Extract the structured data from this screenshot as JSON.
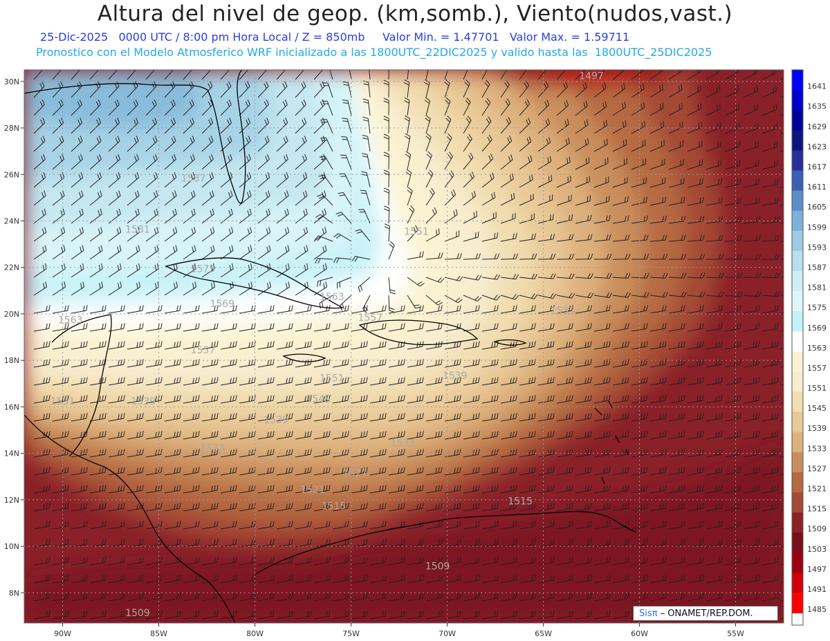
{
  "header": {
    "title": "Altura del nivel de geop. (km,somb.), Viento(nudos,vast.)",
    "subtitle_line1": "25-Dic-2025   0000 UTC / 8:00 pm Hora Local / Z = 850mb     Valor Min. = 1.47701   Valor Max. = 1.59711",
    "subtitle_line2": "Pronostico con el Modelo Atmosferico WRF inicializado a las 1800UTC_22DIC2025 y valido hasta las  1800UTC_25DIC2025"
  },
  "map": {
    "lon_labels": [
      "90W",
      "85W",
      "80W",
      "75W",
      "70W",
      "65W",
      "60W",
      "55W"
    ],
    "lat_labels": [
      "30N",
      "28N",
      "26N",
      "24N",
      "22N",
      "20N",
      "18N",
      "16N",
      "14N",
      "12N",
      "10N",
      "8N"
    ],
    "lon_range": [
      -92,
      -52.5
    ],
    "lat_range": [
      6.7,
      30.5
    ],
    "contour_labels": [
      {
        "text": "1497",
        "lon": -62.5,
        "lat": 30.1
      },
      {
        "text": "1587",
        "lon": -83.2,
        "lat": 25.7
      },
      {
        "text": "1581",
        "lon": -86.1,
        "lat": 23.5
      },
      {
        "text": "1575",
        "lon": -82.7,
        "lat": 21.8
      },
      {
        "text": "1569",
        "lon": -81.7,
        "lat": 20.3
      },
      {
        "text": "1563",
        "lon": -89.6,
        "lat": 19.6
      },
      {
        "text": "1563",
        "lon": -76.0,
        "lat": 20.6
      },
      {
        "text": "1557",
        "lon": -82.7,
        "lat": 18.3
      },
      {
        "text": "1557",
        "lon": -74.0,
        "lat": 19.7
      },
      {
        "text": "1551",
        "lon": -76.0,
        "lat": 17.1
      },
      {
        "text": "1551",
        "lon": -71.6,
        "lat": 23.4
      },
      {
        "text": "1551",
        "lon": -90.0,
        "lat": 16.1
      },
      {
        "text": "1545",
        "lon": -76.7,
        "lat": 16.2
      },
      {
        "text": "1539",
        "lon": -78.9,
        "lat": 15.3
      },
      {
        "text": "1539",
        "lon": -85.8,
        "lat": 16.1
      },
      {
        "text": "1539",
        "lon": -69.6,
        "lat": 17.2
      },
      {
        "text": "1533",
        "lon": -82.2,
        "lat": 14.1
      },
      {
        "text": "1533",
        "lon": -72.3,
        "lat": 14.3
      },
      {
        "text": "1533",
        "lon": -64.0,
        "lat": 20.0
      },
      {
        "text": "1527",
        "lon": -74.8,
        "lat": 13.0
      },
      {
        "text": "1521",
        "lon": -77.0,
        "lat": 12.3
      },
      {
        "text": "1515",
        "lon": -75.9,
        "lat": 11.6
      },
      {
        "text": "1515",
        "lon": -66.2,
        "lat": 11.8
      },
      {
        "text": "1509",
        "lon": -70.5,
        "lat": 9.0
      },
      {
        "text": "1509",
        "lon": -86.1,
        "lat": 7.0
      }
    ]
  },
  "legend": {
    "levels": [
      "1641",
      "1635",
      "1629",
      "1623",
      "1617",
      "1611",
      "1605",
      "1599",
      "1593",
      "1587",
      "1581",
      "1575",
      "1569",
      "1563",
      "1557",
      "1551",
      "1545",
      "1539",
      "1533",
      "1527",
      "1521",
      "1515",
      "1509",
      "1503",
      "1497",
      "1491",
      "1485"
    ],
    "colors": [
      "#0000ff",
      "#0000cc",
      "#000099",
      "#0b1580",
      "#282e99",
      "#3a5fb4",
      "#5b8ec8",
      "#7eb1d9",
      "#9dcbe6",
      "#b7e0ee",
      "#cdeef5",
      "#dff6f9",
      "#c2f3f9",
      "#ffffff",
      "#faf3d2",
      "#f8eccf",
      "#f1ddb0",
      "#e9c998",
      "#ddb17d",
      "#c98e5c",
      "#b66a42",
      "#a44a35",
      "#8c2228",
      "#780f1c",
      "#9a0012",
      "#d00009",
      "#ff0000"
    ]
  },
  "colors": {
    "Sep": "#ffffff",
    "ref": "#3a6fe0"
  },
  "footer": {
    "credit_symbol": "Sisπ",
    "credit_text": "– ONAMET/REP.DOM."
  }
}
